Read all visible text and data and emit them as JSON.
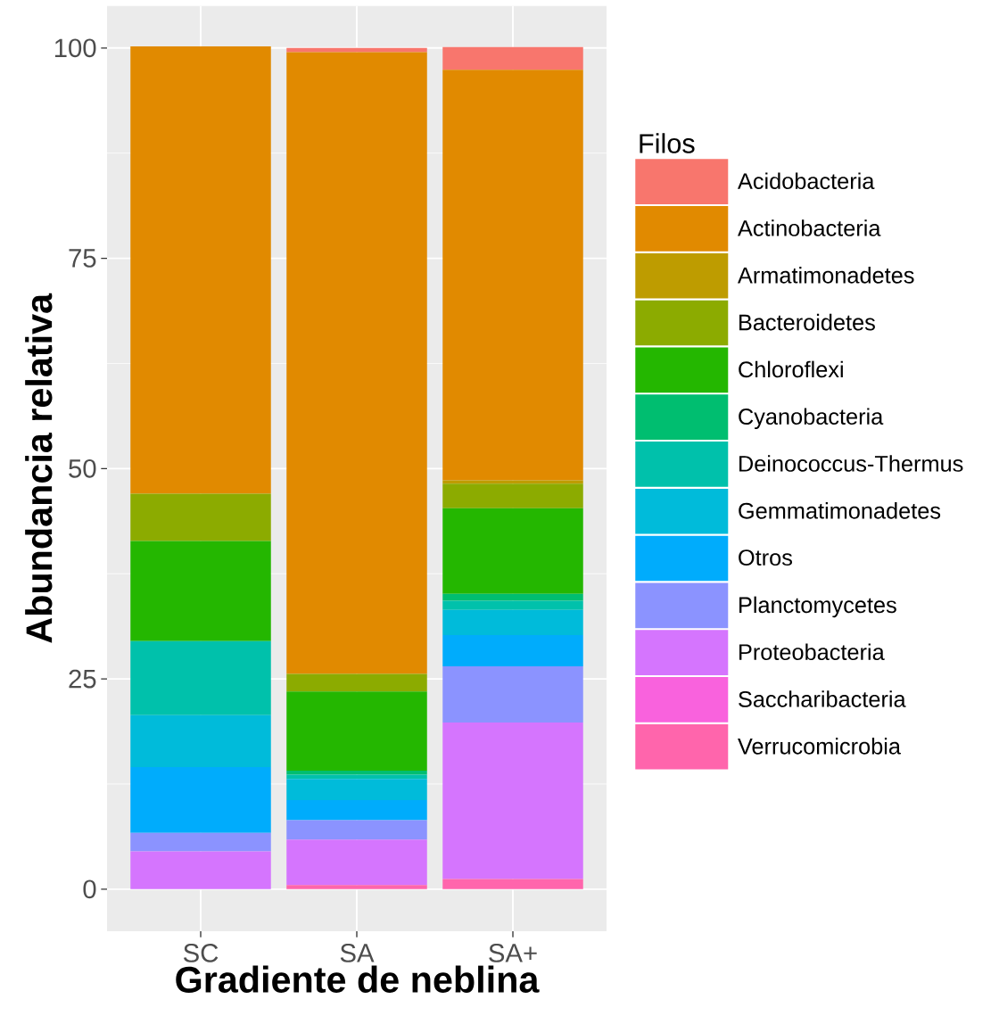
{
  "chart_data": {
    "type": "bar",
    "stacked": true,
    "xlabel": "Gradiente de neblina",
    "ylabel": "Abundancia relativa",
    "legend_title": "Filos",
    "categories": [
      "SC",
      "SA",
      "SA+"
    ],
    "ylim": [
      -5,
      105
    ],
    "yticks": [
      0,
      25,
      50,
      75,
      100
    ],
    "grid": true,
    "legend": "right",
    "series": [
      {
        "name": "Verrucomicrobia",
        "color": "#FF65AC",
        "values": [
          null,
          0.5,
          1.2
        ]
      },
      {
        "name": "Saccharibacteria",
        "color": "#F962DD",
        "values": [
          null,
          null,
          null
        ]
      },
      {
        "name": "Proteobacteria",
        "color": "#D575FE",
        "values": [
          4.5,
          5.4,
          18.6
        ]
      },
      {
        "name": "Planctomycetes",
        "color": "#8B93FF",
        "values": [
          2.2,
          2.3,
          6.7
        ]
      },
      {
        "name": "Otros",
        "color": "#00ACFC",
        "values": [
          7.8,
          2.4,
          3.7
        ]
      },
      {
        "name": "Gemmatimonadetes",
        "color": "#00BBDA",
        "values": [
          6.2,
          2.5,
          3.0
        ]
      },
      {
        "name": "Deinococcus-Thermus",
        "color": "#00C1AB",
        "values": [
          8.8,
          0.5,
          1.1
        ]
      },
      {
        "name": "Cyanobacteria",
        "color": "#00BE70",
        "values": [
          null,
          0.5,
          0.8
        ]
      },
      {
        "name": "Chloroflexi",
        "color": "#24B700",
        "values": [
          11.9,
          9.4,
          10.2
        ]
      },
      {
        "name": "Bacteroidetes",
        "color": "#8CAB00",
        "values": [
          5.6,
          2.1,
          2.9
        ]
      },
      {
        "name": "Armatimonadetes",
        "color": "#BE9C00",
        "values": [
          null,
          null,
          0.4
        ]
      },
      {
        "name": "Actinobacteria",
        "color": "#E18A00",
        "values": [
          53.2,
          73.9,
          48.8
        ]
      },
      {
        "name": "Acidobacteria",
        "color": "#F8766D",
        "values": [
          null,
          0.5,
          2.7
        ]
      }
    ]
  }
}
